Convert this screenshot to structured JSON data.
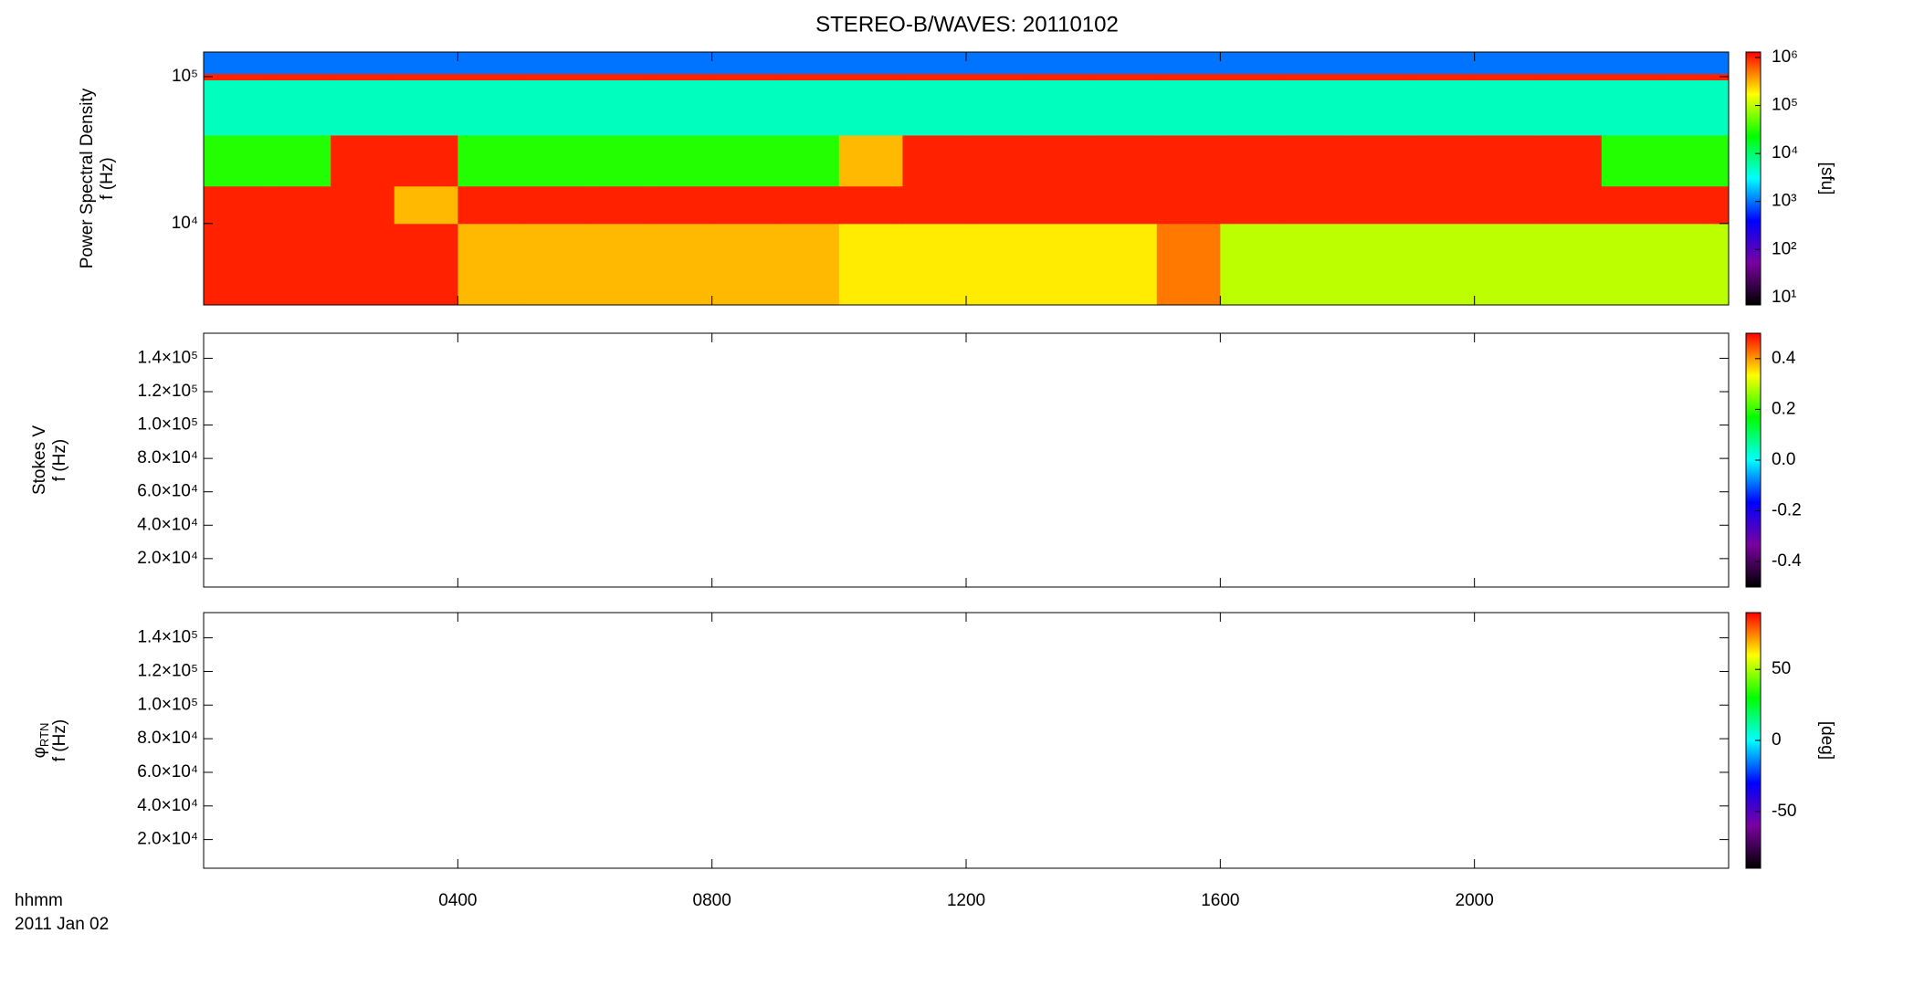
{
  "title": "STEREO-B/WAVES: 20110102",
  "time_label": "hhmm",
  "date_label": "2011 Jan 02",
  "colormap": [
    "#000000",
    "#7a00a0",
    "#0000ff",
    "#00ffff",
    "#00ff00",
    "#ffff00",
    "#ff0000"
  ],
  "chart_data": [
    {
      "type": "heatmap",
      "ylabel_lines": [
        [
          "Power Spectral Density"
        ],
        [
          "f (Hz)"
        ]
      ],
      "xlim": [
        0,
        24
      ],
      "ylim": [
        2790,
        147000
      ],
      "ylog": true,
      "yticks": [
        {
          "value": 10000,
          "label": "10⁴"
        },
        {
          "value": 100000,
          "label": "10⁵"
        }
      ],
      "time_bins": [
        0,
        1,
        2,
        3,
        4,
        5,
        6,
        7,
        8,
        9,
        10,
        11,
        12,
        13,
        14,
        15,
        16,
        17,
        18,
        19,
        20,
        21,
        22,
        23,
        24
      ],
      "freq_bins": [
        2790,
        10000,
        18000,
        40000,
        95000,
        105000,
        147000
      ],
      "z": [
        [
          1000000,
          1000000,
          1000000,
          1000000,
          300000,
          300000,
          300000,
          300000,
          300000,
          300000,
          200000,
          200000,
          200000,
          200000,
          200000,
          500000,
          100000,
          100000,
          100000,
          100000,
          100000,
          100000,
          100000,
          100000
        ],
        [
          1000000,
          1000000,
          1000000,
          300000,
          1000000,
          1000000,
          1000000,
          1000000,
          1000000,
          1000000,
          1000000,
          1000000,
          1000000,
          1000000,
          1000000,
          1000000,
          1000000,
          1000000,
          1000000,
          1000000,
          1000000,
          1000000,
          1000000,
          1000000
        ],
        [
          30000,
          30000,
          1000000,
          1000000,
          30000,
          30000,
          30000,
          30000,
          30000,
          30000,
          300000,
          1000000,
          1000000,
          1000000,
          1000000,
          1000000,
          1000000,
          1000000,
          1000000,
          1000000,
          1000000,
          1000000,
          30000,
          30000
        ],
        [
          5000,
          5000,
          5000,
          5000,
          5000,
          5000,
          5000,
          5000,
          5000,
          5000,
          5000,
          5000,
          5000,
          5000,
          5000,
          5000,
          5000,
          5000,
          5000,
          5000,
          5000,
          5000,
          5000,
          5000
        ],
        [
          1000000,
          1000000,
          1000000,
          1000000,
          1000000,
          1000000,
          1000000,
          1000000,
          1000000,
          1000000,
          1000000,
          1000000,
          1000000,
          1000000,
          1000000,
          1000000,
          1000000,
          1000000,
          1000000,
          1000000,
          1000000,
          1000000,
          1000000,
          1000000
        ],
        [
          1000,
          1000,
          1000,
          1000,
          1000,
          1000,
          1000,
          1000,
          1000,
          1000,
          1000,
          1000,
          1000,
          1000,
          1000,
          1000,
          1000,
          1000,
          1000,
          1000,
          1000,
          1000,
          1000,
          1000
        ]
      ],
      "clim": [
        7,
        1300000
      ],
      "clog": true,
      "cticks": [
        {
          "value": 10,
          "label": "10¹"
        },
        {
          "value": 100,
          "label": "10²"
        },
        {
          "value": 1000,
          "label": "10³"
        },
        {
          "value": 10000,
          "label": "10⁴"
        },
        {
          "value": 100000,
          "label": "10⁵"
        },
        {
          "value": 1000000,
          "label": "10⁶"
        }
      ],
      "clabel": "[sfu]"
    },
    {
      "type": "heatmap",
      "ylabel_lines": [
        [
          "Stokes V"
        ],
        [
          "f (Hz)"
        ]
      ],
      "xlim": [
        0,
        24
      ],
      "ylim": [
        2960,
        155000
      ],
      "yticks": [
        {
          "value": 20000,
          "label": "2.0×10⁴"
        },
        {
          "value": 40000,
          "label": "4.0×10⁴"
        },
        {
          "value": 60000,
          "label": "6.0×10⁴"
        },
        {
          "value": 80000,
          "label": "8.0×10⁴"
        },
        {
          "value": 100000,
          "label": "1.0×10⁵"
        },
        {
          "value": 120000,
          "label": "1.2×10⁵"
        },
        {
          "value": 140000,
          "label": "1.4×10⁵"
        }
      ],
      "clim": [
        -0.5,
        0.5
      ],
      "cticks": [
        {
          "value": -0.4,
          "label": "-0.4"
        },
        {
          "value": -0.2,
          "label": "-0.2"
        },
        {
          "value": 0,
          "label": "0.0"
        },
        {
          "value": 0.2,
          "label": "0.2"
        },
        {
          "value": 0.4,
          "label": "0.4"
        }
      ]
    },
    {
      "type": "heatmap",
      "ylabel_lines": [
        [
          "φ",
          "RTN"
        ],
        [
          "f (Hz)"
        ]
      ],
      "xlim": [
        0,
        24
      ],
      "xticks": [
        {
          "value": 4,
          "label": "0400"
        },
        {
          "value": 8,
          "label": "0800"
        },
        {
          "value": 12,
          "label": "1200"
        },
        {
          "value": 16,
          "label": "1600"
        },
        {
          "value": 20,
          "label": "2000"
        }
      ],
      "ylim": [
        2960,
        155000
      ],
      "yticks": [
        {
          "value": 20000,
          "label": "2.0×10⁴"
        },
        {
          "value": 40000,
          "label": "4.0×10⁴"
        },
        {
          "value": 60000,
          "label": "6.0×10⁴"
        },
        {
          "value": 80000,
          "label": "8.0×10⁴"
        },
        {
          "value": 100000,
          "label": "1.0×10⁵"
        },
        {
          "value": 120000,
          "label": "1.2×10⁵"
        },
        {
          "value": 140000,
          "label": "1.4×10⁵"
        }
      ],
      "clim": [
        -90,
        90
      ],
      "cticks": [
        -50,
        0,
        50
      ],
      "clabel": "[deg]"
    }
  ]
}
